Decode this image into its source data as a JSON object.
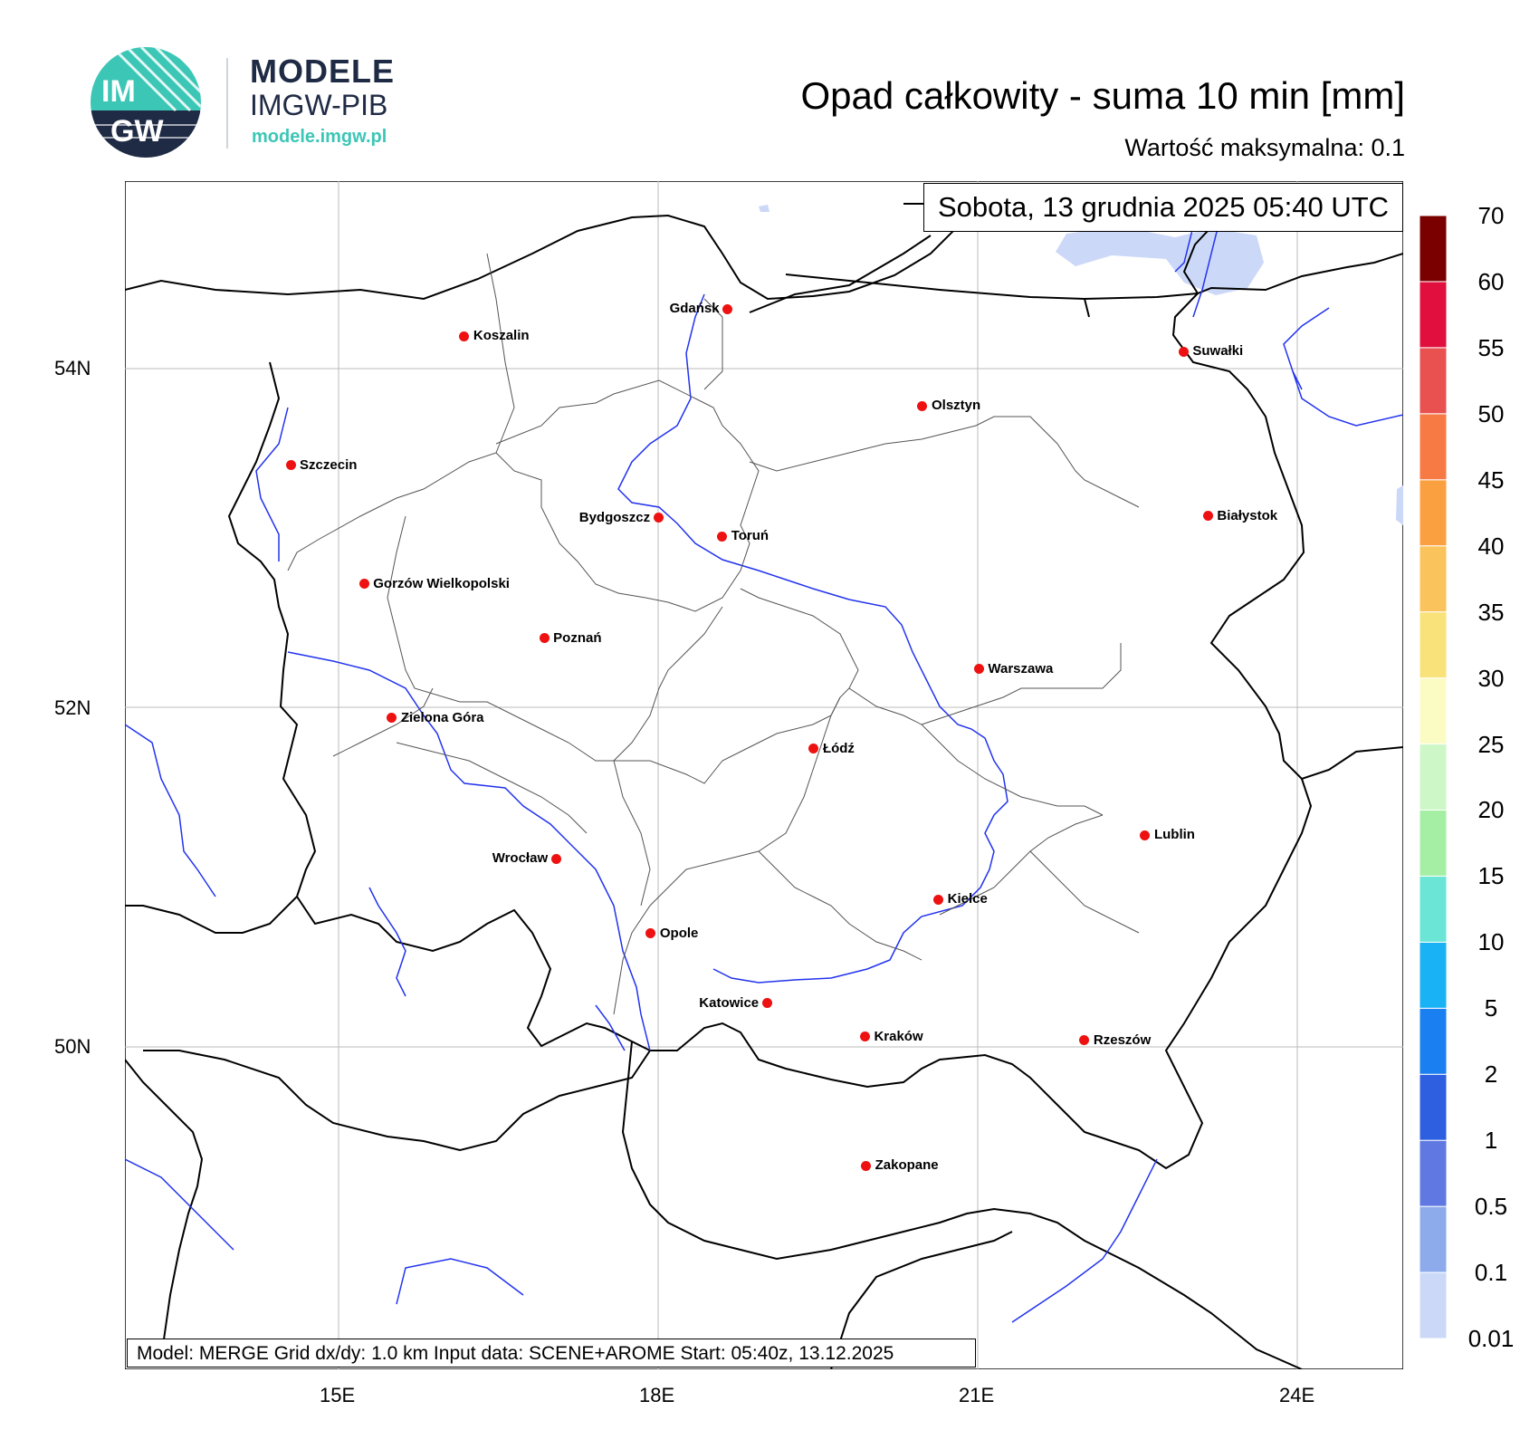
{
  "logo": {
    "circle_text_top": "IM",
    "circle_text_bottom": "GW",
    "line1": "MODELE",
    "line2": "IMGW-PIB",
    "line3": "modele.imgw.pl",
    "colors": {
      "teal": "#3cc6b6",
      "navy": "#1f2b45"
    }
  },
  "title": "Opad całkowity - suma 10 min [mm]",
  "max_value": "Wartość maksymalna:   0.1",
  "date": "Sobota, 13 grudnia 2025 05:40 UTC",
  "info": "Model: MERGE   Grid dx/dy: 1.0 km   Input data: SCENE+AROME   Start: 05:40z, 13.12.2025",
  "axes": {
    "lat_labels": [
      "54N",
      "52N",
      "50N"
    ],
    "lon_labels": [
      "15E",
      "18E",
      "21E",
      "24E"
    ]
  },
  "cities": [
    {
      "name": "Gdańsk",
      "lon": 18.65,
      "lat": 54.35
    },
    {
      "name": "Koszalin",
      "lon": 16.18,
      "lat": 54.19
    },
    {
      "name": "Szczecin",
      "lon": 14.55,
      "lat": 53.43
    },
    {
      "name": "Suwałki",
      "lon": 22.93,
      "lat": 54.1
    },
    {
      "name": "Olsztyn",
      "lon": 20.48,
      "lat": 53.78
    },
    {
      "name": "Białystok",
      "lon": 23.16,
      "lat": 53.13
    },
    {
      "name": "Bydgoszcz",
      "lon": 18.0,
      "lat": 53.12
    },
    {
      "name": "Toruń",
      "lon": 18.6,
      "lat": 53.01
    },
    {
      "name": "Gorzów Wielkopolski",
      "lon": 15.24,
      "lat": 52.73
    },
    {
      "name": "Poznań",
      "lon": 16.93,
      "lat": 52.41
    },
    {
      "name": "Warszawa",
      "lon": 21.01,
      "lat": 52.23
    },
    {
      "name": "Zielona Góra",
      "lon": 15.5,
      "lat": 51.94
    },
    {
      "name": "Łódź",
      "lon": 19.46,
      "lat": 51.76
    },
    {
      "name": "Lublin",
      "lon": 22.57,
      "lat": 51.25
    },
    {
      "name": "Wrocław",
      "lon": 17.04,
      "lat": 51.11
    },
    {
      "name": "Kielce",
      "lon": 20.63,
      "lat": 50.87
    },
    {
      "name": "Opole",
      "lon": 17.93,
      "lat": 50.67
    },
    {
      "name": "Katowice",
      "lon": 19.02,
      "lat": 50.26
    },
    {
      "name": "Rzeszów",
      "lon": 22.0,
      "lat": 50.04
    },
    {
      "name": "Kraków",
      "lon": 19.94,
      "lat": 50.06
    },
    {
      "name": "Zakopane",
      "lon": 19.95,
      "lat": 49.3
    }
  ],
  "colorbar": {
    "levels": [
      "0.01",
      "0.1",
      "0.5",
      "1",
      "2",
      "5",
      "10",
      "15",
      "20",
      "25",
      "30",
      "35",
      "40",
      "45",
      "50",
      "55",
      "60",
      "70"
    ],
    "colors": [
      "#ccd8f7",
      "#8dabeb",
      "#5f78e2",
      "#2d5fe0",
      "#1a7ff0",
      "#19b3f5",
      "#6ae5d6",
      "#a5efa5",
      "#cef7c8",
      "#fbfbc4",
      "#f9e27a",
      "#fbc35b",
      "#fba041",
      "#f77a44",
      "#e95050",
      "#e10f3e",
      "#b4000a",
      "#7a0000"
    ]
  }
}
